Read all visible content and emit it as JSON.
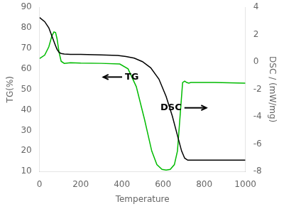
{
  "chart_data": {
    "type": "line",
    "xlabel": "Temperature",
    "ylabel": "TG(%)",
    "y2label": "DSC / (mW/mg)",
    "xlim": [
      0,
      1000
    ],
    "xticks": [
      0,
      200,
      400,
      600,
      800,
      1000
    ],
    "ylim": [
      10,
      90
    ],
    "yticks": [
      10,
      20,
      30,
      40,
      50,
      60,
      70,
      80,
      90
    ],
    "y2lim": [
      -8,
      4
    ],
    "y2ticks": [
      -8,
      -6,
      -4,
      -2,
      0,
      2,
      4
    ],
    "grid": false,
    "series": [
      {
        "color": "#000000",
        "x": [
          0,
          25,
          45,
          60,
          75,
          85,
          95,
          105,
          120,
          150,
          200,
          300,
          380,
          420,
          460,
          500,
          540,
          580,
          615,
          645,
          670,
          690,
          705,
          720,
          780,
          900,
          1000
        ],
        "values": [
          85,
          83,
          80,
          76,
          72,
          69.5,
          68.0,
          67.5,
          67.2,
          67.0,
          67.0,
          66.8,
          66.5,
          66.0,
          65.2,
          63.5,
          60.5,
          55.0,
          46.5,
          37.0,
          27.5,
          20.0,
          16.5,
          15.5,
          15.5,
          15.5,
          15.5
        ]
      },
      {
        "color": "#00bb00",
        "axis": "y2",
        "x": [
          0,
          25,
          45,
          60,
          70,
          78,
          85,
          95,
          105,
          120,
          150,
          200,
          300,
          390,
          430,
          470,
          510,
          545,
          570,
          595,
          615,
          635,
          655,
          670,
          685,
          695,
          705,
          715,
          725,
          735,
          760,
          850,
          1000
        ],
        "values": [
          0.25,
          0.5,
          1.1,
          1.9,
          2.2,
          2.15,
          1.7,
          0.7,
          0.05,
          -0.1,
          -0.05,
          -0.08,
          -0.1,
          -0.15,
          -0.5,
          -1.8,
          -4.2,
          -6.5,
          -7.5,
          -7.85,
          -7.9,
          -7.85,
          -7.5,
          -6.5,
          -3.5,
          -1.5,
          -1.4,
          -1.5,
          -1.55,
          -1.5,
          -1.5,
          -1.5,
          -1.55
        ]
      }
    ],
    "annotations": [
      {
        "text": "TG",
        "x": 415,
        "y": 56,
        "arrow_to": [
          310,
          56
        ]
      },
      {
        "text": "DSC",
        "x": 690,
        "y": 41,
        "arrow_to": [
          810,
          41
        ]
      }
    ]
  }
}
